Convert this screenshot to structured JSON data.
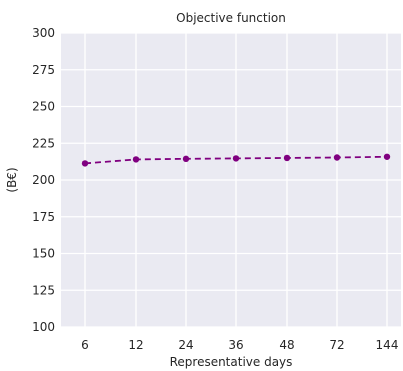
{
  "chart_data": {
    "type": "line",
    "title": "Objective function",
    "xlabel": "Representative days",
    "ylabel": "(B€)",
    "categories": [
      "6",
      "12",
      "24",
      "36",
      "48",
      "72",
      "144"
    ],
    "series": [
      {
        "values": [
          211.3,
          214.0,
          214.4,
          214.7,
          215.0,
          215.3,
          215.8
        ]
      }
    ],
    "ylim": [
      100,
      300
    ],
    "yticks": [
      100,
      125,
      150,
      175,
      200,
      225,
      250,
      275,
      300
    ],
    "grid": true,
    "line_style": "dashed",
    "marker": "circle",
    "line_color": "#800080",
    "background_color": "#eaeaf2",
    "grid_color": "#ffffff"
  }
}
